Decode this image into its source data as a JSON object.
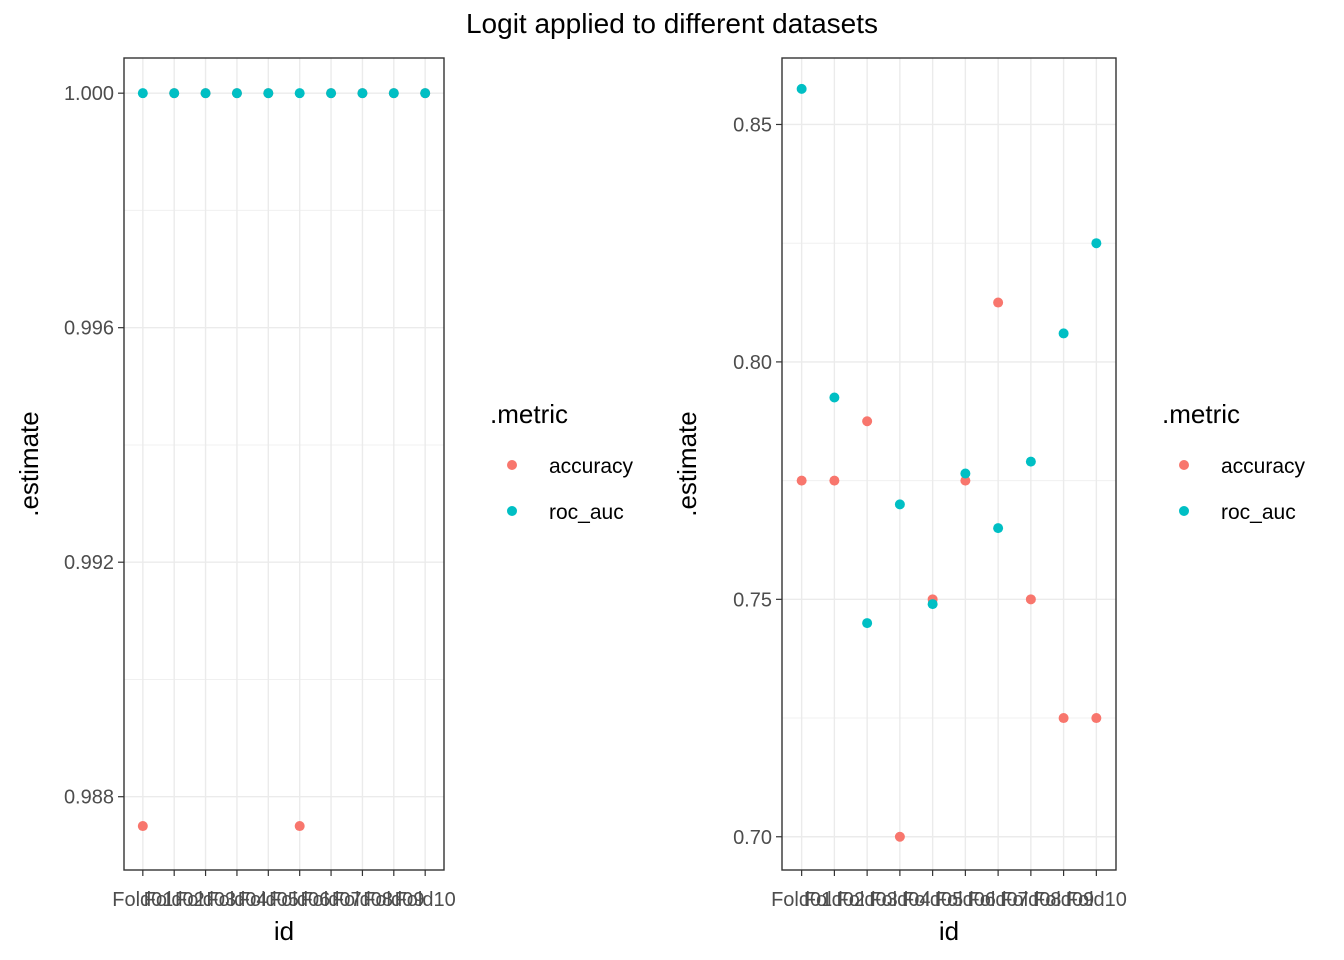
{
  "title": "Logit applied to different datasets",
  "legend": {
    "title": ".metric",
    "entries": [
      {
        "label": "accuracy",
        "color": "#F8766D"
      },
      {
        "label": "roc_auc",
        "color": "#00BFC4"
      }
    ]
  },
  "chart_data": [
    {
      "type": "scatter",
      "xlabel": "id",
      "ylabel": ".estimate",
      "categories": [
        "Fold01",
        "Fold02",
        "Fold03",
        "Fold04",
        "Fold05",
        "Fold06",
        "Fold07",
        "Fold08",
        "Fold09",
        "Fold10"
      ],
      "ylim": [
        0.98675,
        1.0006
      ],
      "yticks": [
        0.988,
        0.992,
        0.996,
        1.0
      ],
      "yticklabels": [
        "0.988",
        "0.992",
        "0.996",
        "1.000"
      ],
      "grid": true,
      "legend_position": "right",
      "series": [
        {
          "name": "accuracy",
          "color": "#F8766D",
          "values": [
            0.9875,
            1.0,
            1.0,
            1.0,
            1.0,
            0.9875,
            1.0,
            1.0,
            1.0,
            1.0
          ]
        },
        {
          "name": "roc_auc",
          "color": "#00BFC4",
          "values": [
            1.0,
            1.0,
            1.0,
            1.0,
            1.0,
            1.0,
            1.0,
            1.0,
            1.0,
            1.0
          ]
        }
      ]
    },
    {
      "type": "scatter",
      "xlabel": "id",
      "ylabel": ".estimate",
      "categories": [
        "Fold01",
        "Fold02",
        "Fold03",
        "Fold04",
        "Fold05",
        "Fold06",
        "Fold07",
        "Fold08",
        "Fold09",
        "Fold10"
      ],
      "ylim": [
        0.693,
        0.864
      ],
      "yticks": [
        0.7,
        0.75,
        0.8,
        0.85
      ],
      "yticklabels": [
        "0.70",
        "0.75",
        "0.80",
        "0.85"
      ],
      "grid": true,
      "legend_position": "right",
      "series": [
        {
          "name": "accuracy",
          "color": "#F8766D",
          "values": [
            0.775,
            0.775,
            0.7875,
            0.7,
            0.75,
            0.775,
            0.8125,
            0.75,
            0.725,
            0.725
          ]
        },
        {
          "name": "roc_auc",
          "color": "#00BFC4",
          "values": [
            0.8575,
            0.7925,
            0.745,
            0.77,
            0.749,
            0.7765,
            0.765,
            0.779,
            0.806,
            0.825
          ]
        }
      ]
    }
  ]
}
